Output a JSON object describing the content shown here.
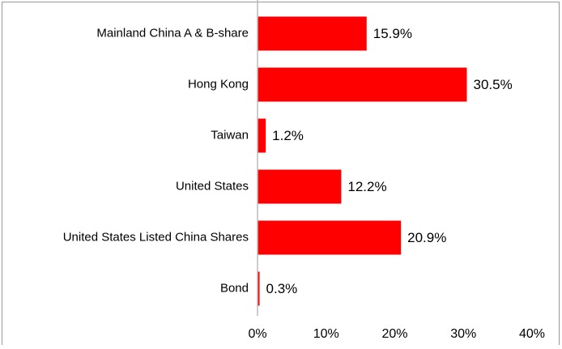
{
  "chart_data": {
    "type": "bar",
    "orientation": "horizontal",
    "categories": [
      "Mainland China A & B-share",
      "Hong Kong",
      "Taiwan",
      "United States",
      "United States Listed China Shares",
      "Bond"
    ],
    "values": [
      15.9,
      30.5,
      1.2,
      12.2,
      20.9,
      0.3
    ],
    "value_labels": [
      "15.9%",
      "30.5%",
      "1.2%",
      "12.2%",
      "20.9%",
      "0.3%"
    ],
    "color": "#ff0000",
    "xlim": [
      0,
      40
    ],
    "xticks": [
      {
        "value": 0,
        "label": "0%"
      },
      {
        "value": 10,
        "label": "10%"
      },
      {
        "value": 20,
        "label": "20%"
      },
      {
        "value": 30,
        "label": "30%"
      },
      {
        "value": 40,
        "label": "40%"
      }
    ],
    "grid": false
  }
}
